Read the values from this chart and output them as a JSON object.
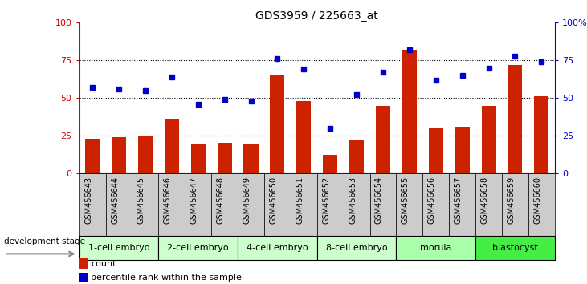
{
  "title": "GDS3959 / 225663_at",
  "samples": [
    "GSM456643",
    "GSM456644",
    "GSM456645",
    "GSM456646",
    "GSM456647",
    "GSM456648",
    "GSM456649",
    "GSM456650",
    "GSM456651",
    "GSM456652",
    "GSM456653",
    "GSM456654",
    "GSM456655",
    "GSM456656",
    "GSM456657",
    "GSM456658",
    "GSM456659",
    "GSM456660"
  ],
  "bar_values": [
    23,
    24,
    25,
    36,
    19,
    20,
    19,
    65,
    48,
    12,
    22,
    45,
    82,
    30,
    31,
    45,
    72,
    51
  ],
  "dot_values": [
    57,
    56,
    55,
    64,
    46,
    49,
    48,
    76,
    69,
    30,
    52,
    67,
    82,
    62,
    65,
    70,
    78,
    74
  ],
  "groups": [
    {
      "label": "1-cell embryo",
      "start": 0,
      "end": 3,
      "color": "#d9d9d9"
    },
    {
      "label": "2-cell embryo",
      "start": 3,
      "end": 6,
      "color": "#d9d9d9"
    },
    {
      "label": "4-cell embryo",
      "start": 6,
      "end": 9,
      "color": "#d9d9d9"
    },
    {
      "label": "8-cell embryo",
      "start": 9,
      "end": 12,
      "color": "#d9d9d9"
    },
    {
      "label": "morula",
      "start": 12,
      "end": 15,
      "color": "#d9d9d9"
    },
    {
      "label": "blastocyst",
      "start": 15,
      "end": 18,
      "color": "#55ee55"
    }
  ],
  "group_colors": [
    "#ccffcc",
    "#ccffcc",
    "#ccffcc",
    "#ccffcc",
    "#ccffcc",
    "#44ee44"
  ],
  "bar_color": "#cc2200",
  "dot_color": "#0000cc",
  "left_axis_color": "#cc0000",
  "right_axis_color": "#0000cc",
  "ylim": [
    0,
    100
  ],
  "grid_values": [
    25,
    50,
    75
  ],
  "bar_width": 0.55,
  "xtick_bg_color": "#cccccc",
  "dev_stage_label": "development stage",
  "legend_count": "count",
  "legend_pct": "percentile rank within the sample"
}
